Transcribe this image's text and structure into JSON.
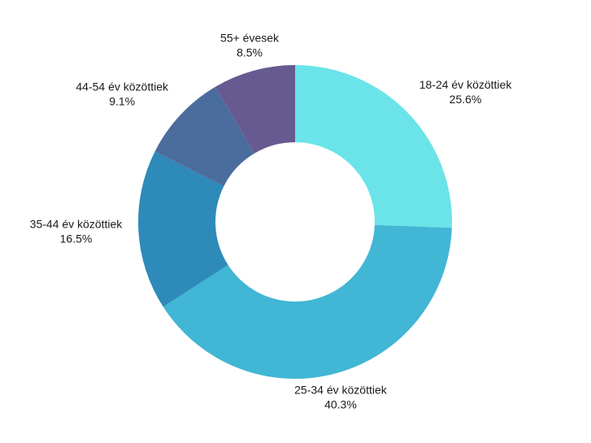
{
  "chart_data": {
    "type": "pie",
    "donut": true,
    "title": "",
    "legend": "none",
    "slices": [
      {
        "label": "18-24 év közöttiek",
        "value": 25.6,
        "value_label": "25.6%",
        "color": "#6ae4e8"
      },
      {
        "label": "25-34 év közöttiek",
        "value": 40.3,
        "value_label": "40.3%",
        "color": "#41b6d5"
      },
      {
        "label": "35-44 év közöttiek",
        "value": 16.5,
        "value_label": "16.5%",
        "color": "#2e8ab9"
      },
      {
        "label": "44-54 év közöttiek",
        "value": 9.1,
        "value_label": "9.1%",
        "color": "#4b6d9d"
      },
      {
        "label": "55+ évesek",
        "value": 8.5,
        "value_label": "8.5%",
        "color": "#665a91"
      }
    ]
  }
}
